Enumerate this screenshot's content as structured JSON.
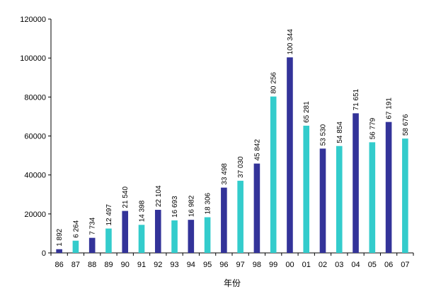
{
  "chart_data": {
    "type": "bar",
    "title": "",
    "xlabel": "年份",
    "ylabel": "",
    "ylim": [
      0,
      120000
    ],
    "yticks": [
      "0",
      "20000",
      "40000",
      "60000",
      "80000",
      "100000",
      "120000"
    ],
    "grid": false,
    "legend": "none",
    "colors": {
      "dark": "#333399",
      "light": "#33CCCC",
      "axis": "#000000"
    },
    "categories": [
      "86",
      "87",
      "88",
      "89",
      "90",
      "91",
      "92",
      "93",
      "94",
      "95",
      "96",
      "97",
      "98",
      "99",
      "00",
      "01",
      "02",
      "03",
      "04",
      "05",
      "06",
      "07"
    ],
    "values": [
      1892,
      6264,
      7734,
      12497,
      21540,
      14398,
      22104,
      16693,
      16982,
      18306,
      33498,
      37030,
      45842,
      80256,
      100344,
      65281,
      53530,
      54854,
      71651,
      56779,
      67191,
      58676
    ],
    "value_labels": [
      "1 892",
      "6 264",
      "7 734",
      "12 497",
      "21 540",
      "14 398",
      "22 104",
      "16 693",
      "16 982",
      "18 306",
      "33 498",
      "37 030",
      "45 842",
      "80 256",
      "100 344",
      "65 281",
      "53 530",
      "54 854",
      "71 651",
      "56 779",
      "67 191",
      "58 676"
    ],
    "bar_colors": [
      "dark",
      "light",
      "dark",
      "light",
      "dark",
      "light",
      "dark",
      "light",
      "dark",
      "light",
      "dark",
      "light",
      "dark",
      "light",
      "dark",
      "light",
      "dark",
      "light",
      "dark",
      "light",
      "dark",
      "light"
    ]
  }
}
